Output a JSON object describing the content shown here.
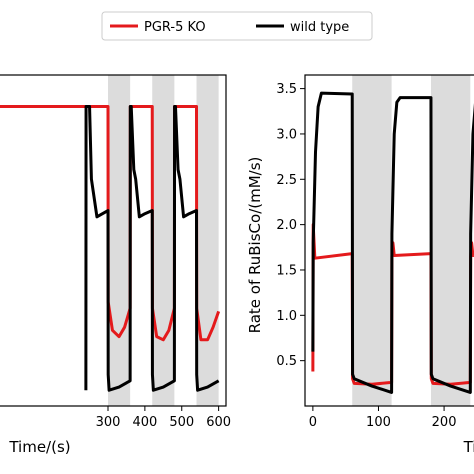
{
  "legend": {
    "placement": "top-center",
    "entries": [
      {
        "name": "PGR-5 KO",
        "color": "#e41a1c"
      },
      {
        "name": "wild type",
        "color": "#000000"
      }
    ]
  },
  "chart_data": [
    {
      "type": "line",
      "xlabel": "Time/(s)",
      "ylabel": "",
      "xlim": [
        -20,
        620
      ],
      "ylim": [
        0,
        1.05
      ],
      "xticks": [
        300,
        400,
        500,
        600
      ],
      "yticks": [],
      "grid": false,
      "shaded_intervals": [
        [
          300,
          360
        ],
        [
          420,
          480
        ],
        [
          540,
          600
        ]
      ],
      "series": [
        {
          "name": "PGR-5 KO",
          "color": "#e41a1c",
          "x": [
            0,
            0.5,
            60,
            60.5,
            120,
            120.5,
            180,
            180.5,
            240,
            240.5,
            300,
            300.5,
            312,
            330,
            345,
            360,
            360.5,
            372,
            390,
            405,
            420,
            420.5,
            432,
            450,
            465,
            480,
            480.5,
            492,
            510,
            525,
            540,
            540.5,
            552,
            570,
            585,
            600
          ],
          "y": [
            0.95,
            0.95,
            0.95,
            0.95,
            0.95,
            0.95,
            0.95,
            0.95,
            0.95,
            0.95,
            0.95,
            0.33,
            0.24,
            0.22,
            0.25,
            0.31,
            0.95,
            0.95,
            0.95,
            0.95,
            0.95,
            0.31,
            0.22,
            0.21,
            0.24,
            0.31,
            0.95,
            0.95,
            0.95,
            0.95,
            0.95,
            0.31,
            0.21,
            0.21,
            0.25,
            0.3
          ]
        },
        {
          "name": "wild type",
          "color": "#000000",
          "x": [
            240,
            240.5,
            250,
            255,
            260,
            270,
            285,
            300,
            300.5,
            303,
            330,
            360,
            360.5,
            363,
            370,
            375,
            385,
            400,
            420,
            420.5,
            423,
            450,
            480,
            480.5,
            483,
            490,
            495,
            505,
            520,
            540,
            540.5,
            543,
            570,
            600
          ],
          "y": [
            0.05,
            0.95,
            0.95,
            0.72,
            0.68,
            0.6,
            0.61,
            0.62,
            0.1,
            0.05,
            0.06,
            0.08,
            0.95,
            0.95,
            0.75,
            0.72,
            0.6,
            0.61,
            0.62,
            0.1,
            0.05,
            0.06,
            0.08,
            0.95,
            0.95,
            0.75,
            0.72,
            0.6,
            0.61,
            0.62,
            0.1,
            0.05,
            0.06,
            0.08
          ]
        }
      ]
    },
    {
      "type": "line",
      "xlabel": "Ti",
      "ylabel": "Rate of RuBisCo/(mM/s)",
      "xlim": [
        -12,
        270
      ],
      "ylim": [
        0,
        3.65
      ],
      "xticks": [
        0,
        100,
        200
      ],
      "yticks": [
        0.5,
        1.0,
        1.5,
        2.0,
        2.5,
        3.0,
        3.5
      ],
      "grid": false,
      "shaded_intervals": [
        [
          60,
          120
        ],
        [
          180,
          240
        ]
      ],
      "series": [
        {
          "name": "PGR-5 KO",
          "color": "#e41a1c",
          "x": [
            0,
            0.5,
            1.5,
            3,
            60,
            60.5,
            63,
            90,
            120,
            120.5,
            122,
            124,
            180,
            180.5,
            183,
            210,
            240,
            240.5,
            242,
            244,
            262
          ],
          "y": [
            0.38,
            2.0,
            1.85,
            1.63,
            1.68,
            0.3,
            0.25,
            0.24,
            0.26,
            1.65,
            1.8,
            1.66,
            1.68,
            0.3,
            0.25,
            0.24,
            0.26,
            1.65,
            1.8,
            1.66,
            1.68
          ]
        },
        {
          "name": "wild type",
          "color": "#000000",
          "x": [
            0,
            0.5,
            4,
            8,
            13,
            60,
            60.5,
            63,
            90,
            120,
            120.5,
            124,
            128,
            133,
            180,
            180.5,
            183,
            210,
            240,
            240.5,
            244,
            248,
            253,
            262
          ],
          "y": [
            0.6,
            1.8,
            2.8,
            3.3,
            3.45,
            3.44,
            0.35,
            0.3,
            0.22,
            0.15,
            1.9,
            3.0,
            3.35,
            3.4,
            3.4,
            0.35,
            0.3,
            0.22,
            0.15,
            1.9,
            3.0,
            3.35,
            3.4,
            3.42
          ]
        }
      ]
    }
  ]
}
